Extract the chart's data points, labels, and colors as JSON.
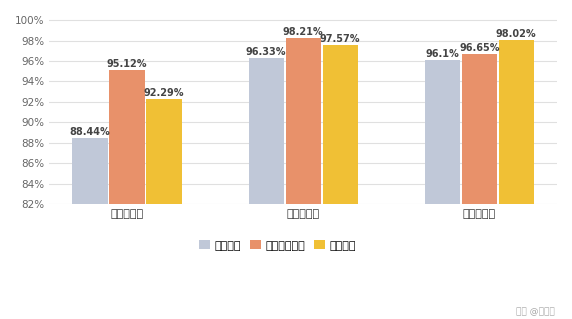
{
  "categories": [
    "本科就业率",
    "硕士就业率",
    "博士就业率"
  ],
  "series": [
    {
      "name": "四川大学",
      "color": "#c0c8d8",
      "values": [
        88.44,
        96.33,
        96.1
      ]
    },
    {
      "name": "电子科技大学",
      "color": "#e8916a",
      "values": [
        95.12,
        98.21,
        96.65
      ]
    },
    {
      "name": "重庆大学",
      "color": "#f0c035",
      "values": [
        92.29,
        97.57,
        98.02
      ]
    }
  ],
  "ylim": [
    82,
    100
  ],
  "yticks": [
    82,
    84,
    86,
    88,
    90,
    92,
    94,
    96,
    98,
    100
  ],
  "background_color": "#ffffff",
  "grid_color": "#e0e0e0",
  "label_fontsize": 7,
  "tick_fontsize": 7.5,
  "legend_fontsize": 8,
  "bar_width": 0.2,
  "watermark": "头条 @優志愿"
}
